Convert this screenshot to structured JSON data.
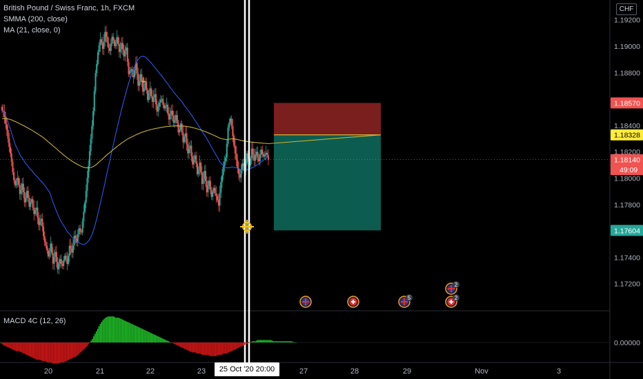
{
  "header": {
    "symbol_title": "British Pound / Swiss Franc, 1h, FXCM",
    "indicator_1": "SMMA (200, close)",
    "indicator_2": "MA (21, close, 0)",
    "currency": "CHF"
  },
  "macd": {
    "label": "MACD 4C (12, 26)",
    "zero_label": "0.00000"
  },
  "crosshair_time_label": "25 Oct '20  20:00",
  "colors": {
    "up": "#26a69a",
    "down": "#ef5350",
    "smma": "#c8b432",
    "ma": "#2962ff",
    "stop_zone": "#7b1e1e",
    "target_zone": "#0d5c50",
    "stop_label": "#f05350",
    "entry_label": "#ffeb3b",
    "target_label": "#26a69a",
    "current_label": "#f05350",
    "macd_up": "#22c92a",
    "macd_down": "#e21818"
  },
  "chart_data": {
    "type": "candlestick",
    "y_axis": {
      "min": 1.17,
      "max": 1.1935,
      "ticks": [
        "1.19200",
        "1.19000",
        "1.18800",
        "1.18400",
        "1.18200",
        "1.18000",
        "1.17800",
        "1.17400",
        "1.17200"
      ]
    },
    "x_axis": {
      "ticks": [
        "20",
        "21",
        "22",
        "23",
        "27",
        "28",
        "29",
        "Nov",
        "3"
      ]
    },
    "price_labels": [
      {
        "name": "stop",
        "value": 1.1857,
        "text": "1.18570"
      },
      {
        "name": "entry",
        "value": 1.18328,
        "text": "1.18328"
      },
      {
        "name": "current",
        "value": 1.1814,
        "text": "1.18140"
      },
      {
        "name": "countdown",
        "value": 1.18065,
        "text": "49:09"
      },
      {
        "name": "target",
        "value": 1.17604,
        "text": "1.17604"
      }
    ],
    "position": {
      "type": "short",
      "entry": 1.18328,
      "stop": 1.1857,
      "target": 1.17604
    },
    "candles_close": [
      1.185,
      1.1842,
      1.183,
      1.1818,
      1.1805,
      1.1794,
      1.1801,
      1.1788,
      1.1795,
      1.1782,
      1.179,
      1.1779,
      1.1784,
      1.1772,
      1.1778,
      1.1764,
      1.177,
      1.1756,
      1.1748,
      1.1741,
      1.175,
      1.1736,
      1.1744,
      1.173,
      1.1739,
      1.1733,
      1.1742,
      1.1735,
      1.1748,
      1.1744,
      1.1756,
      1.1752,
      1.1762,
      1.1758,
      1.1775,
      1.179,
      1.181,
      1.183,
      1.185,
      1.188,
      1.1895,
      1.1906,
      1.1898,
      1.191,
      1.1903,
      1.1896,
      1.1908,
      1.19,
      1.1906,
      1.1896,
      1.1902,
      1.1893,
      1.1899,
      1.1878,
      1.1883,
      1.1876,
      1.1888,
      1.187,
      1.1878,
      1.1866,
      1.1873,
      1.186,
      1.1868,
      1.1857,
      1.1864,
      1.185,
      1.1858,
      1.186,
      1.1852,
      1.1856,
      1.1844,
      1.1852,
      1.1842,
      1.1847,
      1.1835,
      1.1841,
      1.1828,
      1.1834,
      1.1818,
      1.1825,
      1.181,
      1.1818,
      1.1803,
      1.1811,
      1.1796,
      1.1805,
      1.179,
      1.1798,
      1.1785,
      1.1793,
      1.1786,
      1.178,
      1.1797,
      1.1808,
      1.1816,
      1.1838,
      1.1846,
      1.1832,
      1.1818,
      1.1808,
      1.18,
      1.1812,
      1.1805,
      1.1818,
      1.181,
      1.1822,
      1.1814,
      1.182,
      1.1812,
      1.1822,
      1.1816,
      1.182,
      1.1814
    ],
    "smma_start": 1.1845,
    "macd_histogram": [
      0,
      -2,
      -3,
      -4,
      -5,
      -6,
      -7,
      -7,
      -8,
      -9,
      -10,
      -11,
      -12,
      -13,
      -14,
      -14,
      -15,
      -15,
      -16,
      -16,
      -17,
      -17,
      -17,
      -16,
      -16,
      -15,
      -14,
      -13,
      -12,
      -11,
      -9,
      -7,
      -5,
      -3,
      0,
      3,
      7,
      11,
      15,
      18,
      20,
      21,
      21,
      21,
      20,
      20,
      19,
      18,
      17,
      16,
      15,
      14,
      13,
      12,
      11,
      10,
      9,
      8,
      7,
      6,
      5,
      4,
      3,
      2,
      1,
      0,
      -1,
      -2,
      -3,
      -4,
      -5,
      -6,
      -7,
      -8,
      -8,
      -9,
      -9,
      -10,
      -10,
      -10,
      -11,
      -11,
      -11,
      -10,
      -10,
      -9,
      -9,
      -8,
      -7,
      -6,
      -5,
      -4,
      -3,
      -2,
      -1,
      0,
      1,
      1,
      2,
      2,
      2,
      2,
      2,
      2,
      1,
      1,
      1,
      1,
      1,
      1,
      1,
      1,
      0
    ],
    "events": [
      {
        "type": "flag-gb",
        "time_index": 148
      },
      {
        "type": "flag-ch",
        "time_index": 168
      },
      {
        "type": "flag-gb",
        "time_index": 194,
        "count": "5"
      },
      {
        "type": "flag-gb",
        "time_index": 218,
        "count": "2"
      },
      {
        "type": "flag-ch",
        "time_index": 218,
        "count": "2"
      }
    ]
  }
}
